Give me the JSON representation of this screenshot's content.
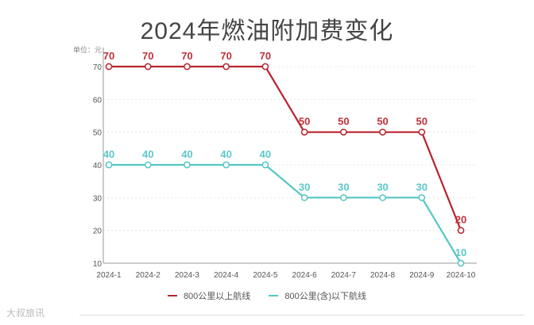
{
  "page": {
    "title": "2024年燃油附加费变化",
    "unit_label": "单位：元",
    "watermark": "大叔旅讯"
  },
  "chart_data": {
    "type": "line",
    "title": "2024年燃油附加费变化",
    "categories": [
      "2024-1",
      "2024-2",
      "2024-3",
      "2024-4",
      "2024-5",
      "2024-6",
      "2024-7",
      "2024-8",
      "2024-9",
      "2024-10"
    ],
    "series": [
      {
        "name": "800公里以上航线",
        "values": [
          70,
          70,
          70,
          70,
          70,
          50,
          50,
          50,
          50,
          20
        ],
        "color": "#b8242e",
        "label_color": "#c0303a"
      },
      {
        "name": "800公里(含)以下航线",
        "values": [
          40,
          40,
          40,
          40,
          40,
          30,
          30,
          30,
          30,
          10
        ],
        "color": "#55c6c6",
        "label_color": "#5cc8c8"
      }
    ],
    "yticks": [
      10,
      20,
      30,
      40,
      50,
      60,
      70
    ],
    "ylim": [
      10,
      75
    ],
    "legend_position": "bottom",
    "grid": true
  }
}
